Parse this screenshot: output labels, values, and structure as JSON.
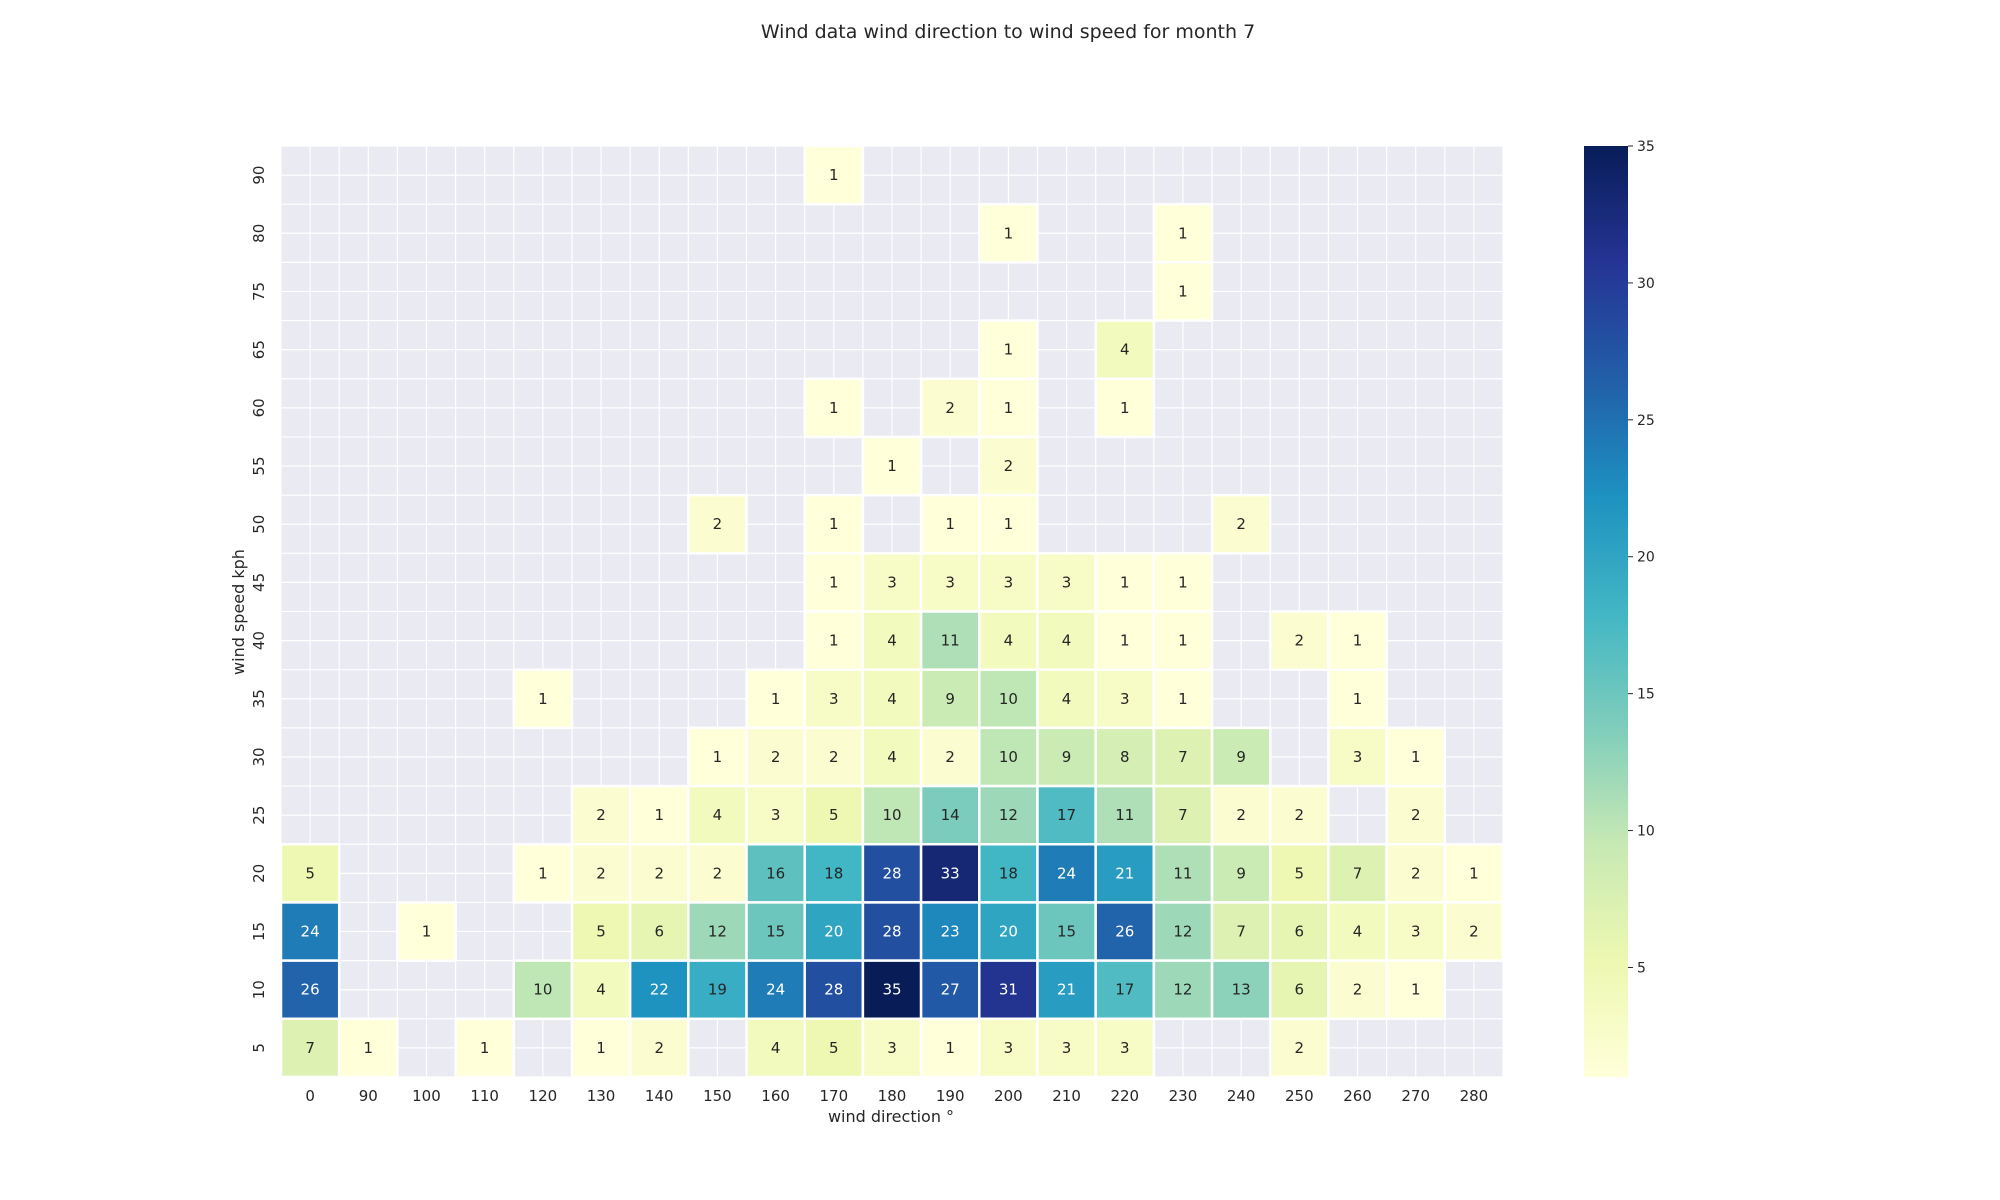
{
  "chart_data": {
    "type": "heatmap",
    "title": "Wind data wind direction to wind speed for month 7",
    "xlabel": "wind direction °",
    "ylabel": "wind speed kph",
    "x_categories": [
      "0",
      "90",
      "100",
      "110",
      "120",
      "130",
      "140",
      "150",
      "160",
      "170",
      "180",
      "190",
      "200",
      "210",
      "220",
      "230",
      "240",
      "250",
      "260",
      "270",
      "280"
    ],
    "y_categories": [
      "90",
      "80",
      "75",
      "65",
      "60",
      "55",
      "50",
      "45",
      "40",
      "35",
      "30",
      "25",
      "20",
      "15",
      "10",
      "5"
    ],
    "values": [
      [
        null,
        null,
        null,
        null,
        null,
        null,
        null,
        null,
        null,
        1,
        null,
        null,
        null,
        null,
        null,
        null,
        null,
        null,
        null,
        null,
        null
      ],
      [
        null,
        null,
        null,
        null,
        null,
        null,
        null,
        null,
        null,
        null,
        null,
        null,
        1,
        null,
        null,
        1,
        null,
        null,
        null,
        null,
        null
      ],
      [
        null,
        null,
        null,
        null,
        null,
        null,
        null,
        null,
        null,
        null,
        null,
        null,
        null,
        null,
        null,
        1,
        null,
        null,
        null,
        null,
        null
      ],
      [
        null,
        null,
        null,
        null,
        null,
        null,
        null,
        null,
        null,
        null,
        null,
        null,
        1,
        null,
        4,
        null,
        null,
        null,
        null,
        null,
        null
      ],
      [
        null,
        null,
        null,
        null,
        null,
        null,
        null,
        null,
        null,
        1,
        null,
        2,
        1,
        null,
        1,
        null,
        null,
        null,
        null,
        null,
        null
      ],
      [
        null,
        null,
        null,
        null,
        null,
        null,
        null,
        null,
        null,
        null,
        1,
        null,
        2,
        null,
        null,
        null,
        null,
        null,
        null,
        null,
        null
      ],
      [
        null,
        null,
        null,
        null,
        null,
        null,
        null,
        2,
        null,
        1,
        null,
        1,
        1,
        null,
        null,
        null,
        2,
        null,
        null,
        null,
        null
      ],
      [
        null,
        null,
        null,
        null,
        null,
        null,
        null,
        null,
        null,
        1,
        3,
        3,
        3,
        3,
        1,
        1,
        null,
        null,
        null,
        null,
        null
      ],
      [
        null,
        null,
        null,
        null,
        null,
        null,
        null,
        null,
        null,
        1,
        4,
        11,
        4,
        4,
        1,
        1,
        null,
        2,
        1,
        null,
        null
      ],
      [
        null,
        null,
        null,
        null,
        1,
        null,
        null,
        null,
        1,
        3,
        4,
        9,
        10,
        4,
        3,
        1,
        null,
        null,
        1,
        null,
        null
      ],
      [
        null,
        null,
        null,
        null,
        null,
        null,
        null,
        1,
        2,
        2,
        4,
        2,
        10,
        9,
        8,
        7,
        9,
        null,
        3,
        1,
        null
      ],
      [
        null,
        null,
        null,
        null,
        null,
        2,
        1,
        4,
        3,
        5,
        10,
        14,
        12,
        17,
        11,
        7,
        2,
        2,
        null,
        2,
        null
      ],
      [
        5,
        null,
        null,
        null,
        1,
        2,
        2,
        2,
        16,
        18,
        28,
        33,
        18,
        24,
        21,
        11,
        9,
        5,
        7,
        2,
        1
      ],
      [
        24,
        null,
        1,
        null,
        null,
        5,
        6,
        12,
        15,
        20,
        28,
        23,
        20,
        15,
        26,
        12,
        7,
        6,
        4,
        3,
        2
      ],
      [
        26,
        null,
        null,
        null,
        10,
        4,
        22,
        19,
        24,
        28,
        35,
        27,
        31,
        21,
        17,
        12,
        13,
        6,
        2,
        1,
        null
      ],
      [
        7,
        1,
        null,
        1,
        null,
        1,
        2,
        null,
        4,
        5,
        3,
        1,
        3,
        3,
        3,
        null,
        null,
        2,
        null,
        null,
        null
      ]
    ],
    "colorbar": {
      "min": 1,
      "max": 35,
      "ticks": [
        "5",
        "10",
        "15",
        "20",
        "25",
        "30",
        "35"
      ],
      "colormap": "YlGnBu"
    },
    "grid": true,
    "background_color": "#eaeaf2"
  }
}
